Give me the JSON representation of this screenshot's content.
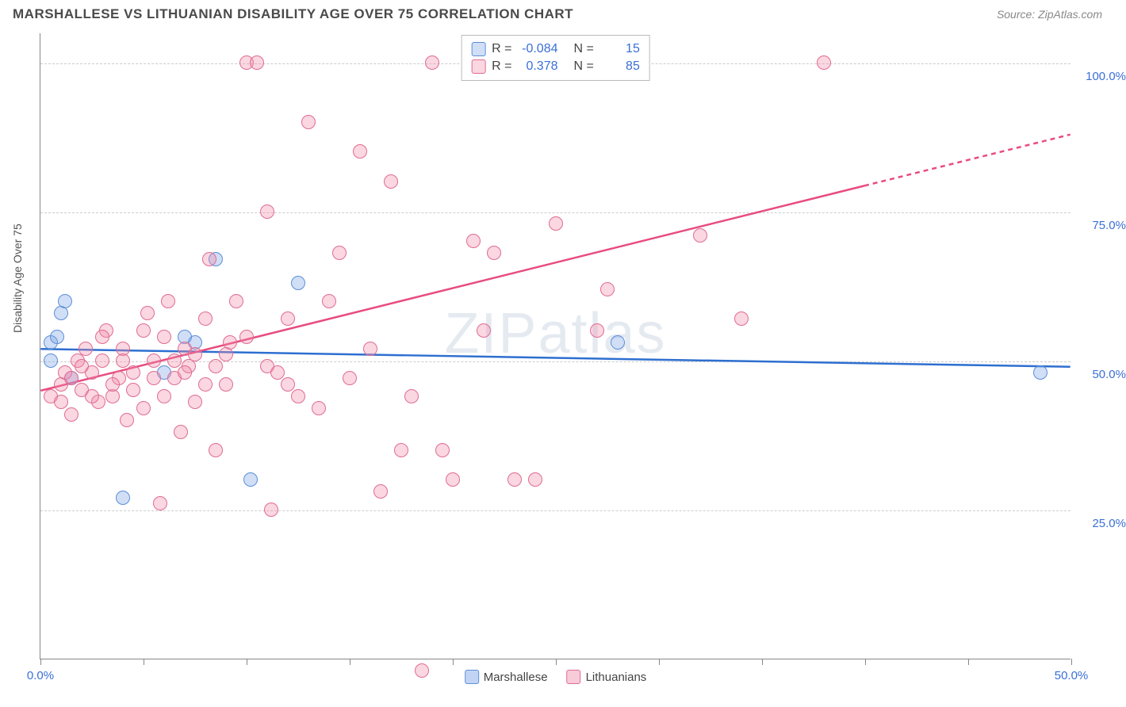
{
  "header": {
    "title": "MARSHALLESE VS LITHUANIAN DISABILITY AGE OVER 75 CORRELATION CHART",
    "source": "Source: ZipAtlas.com"
  },
  "ylabel": "Disability Age Over 75",
  "watermark_a": "ZIP",
  "watermark_b": "atlas",
  "chart": {
    "type": "scatter",
    "xlim": [
      0,
      50
    ],
    "ylim": [
      0,
      105
    ],
    "xtick_positions": [
      0,
      5,
      10,
      15,
      20,
      25,
      30,
      35,
      40,
      45,
      50
    ],
    "xtick_labels": {
      "0": "0.0%",
      "50": "50.0%"
    },
    "ytick_positions": [
      25,
      50,
      75,
      100
    ],
    "ytick_labels": {
      "25": "25.0%",
      "50": "50.0%",
      "75": "75.0%",
      "100": "100.0%"
    },
    "grid_color": "#cccccc",
    "background_color": "#ffffff",
    "axis_color": "#888888",
    "tick_label_color": "#3b6fd6",
    "marker_radius": 9,
    "series": [
      {
        "name": "Marshallese",
        "fill": "rgba(120,160,230,0.35)",
        "stroke": "#5b8fd8",
        "line_color": "#2e6fd0",
        "line_width": 2.5,
        "r_value": "-0.084",
        "n_value": "15",
        "trend": {
          "x1": 0,
          "y1": 52,
          "x2": 50,
          "y2": 49,
          "dash_from_x": null
        },
        "points": [
          [
            0.5,
            53
          ],
          [
            0.5,
            50
          ],
          [
            1.0,
            58
          ],
          [
            1.2,
            60
          ],
          [
            1.5,
            47
          ],
          [
            4.0,
            27
          ],
          [
            7.5,
            53
          ],
          [
            8.5,
            67
          ],
          [
            10.2,
            30
          ],
          [
            12.5,
            63
          ],
          [
            6.0,
            48
          ],
          [
            0.8,
            54
          ],
          [
            28.0,
            53
          ],
          [
            48.5,
            48
          ],
          [
            7.0,
            54
          ]
        ]
      },
      {
        "name": "Lithuanians",
        "fill": "rgba(240,140,170,0.35)",
        "stroke": "#e06b94",
        "line_color": "#e84c7f",
        "line_width": 2.5,
        "r_value": "0.378",
        "n_value": "85",
        "trend": {
          "x1": 0,
          "y1": 45,
          "x2": 50,
          "y2": 88,
          "dash_from_x": 40
        },
        "points": [
          [
            0.5,
            44
          ],
          [
            1.0,
            46
          ],
          [
            1.2,
            48
          ],
          [
            1.5,
            47
          ],
          [
            1.8,
            50
          ],
          [
            2.0,
            45
          ],
          [
            2.2,
            52
          ],
          [
            2.5,
            48
          ],
          [
            2.8,
            43
          ],
          [
            3.0,
            50
          ],
          [
            3.2,
            55
          ],
          [
            3.5,
            44
          ],
          [
            3.8,
            47
          ],
          [
            4.0,
            52
          ],
          [
            4.2,
            40
          ],
          [
            4.5,
            48
          ],
          [
            5.0,
            42
          ],
          [
            5.2,
            58
          ],
          [
            5.5,
            50
          ],
          [
            5.8,
            26
          ],
          [
            6.0,
            54
          ],
          [
            6.2,
            60
          ],
          [
            6.5,
            47
          ],
          [
            6.8,
            38
          ],
          [
            7.0,
            52
          ],
          [
            7.2,
            49
          ],
          [
            7.5,
            43
          ],
          [
            8.0,
            57
          ],
          [
            8.2,
            67
          ],
          [
            8.5,
            35
          ],
          [
            9.0,
            46
          ],
          [
            9.2,
            53
          ],
          [
            9.5,
            60
          ],
          [
            10.0,
            100
          ],
          [
            10.5,
            100
          ],
          [
            11.0,
            75
          ],
          [
            11.2,
            25
          ],
          [
            11.5,
            48
          ],
          [
            12.0,
            57
          ],
          [
            12.5,
            44
          ],
          [
            13.0,
            90
          ],
          [
            13.5,
            42
          ],
          [
            14.0,
            60
          ],
          [
            14.5,
            68
          ],
          [
            15.0,
            47
          ],
          [
            15.5,
            85
          ],
          [
            16.0,
            52
          ],
          [
            16.5,
            28
          ],
          [
            17.0,
            80
          ],
          [
            17.5,
            35
          ],
          [
            18.0,
            44
          ],
          [
            18.5,
            -2
          ],
          [
            19.0,
            100
          ],
          [
            19.5,
            35
          ],
          [
            20.0,
            30
          ],
          [
            21.0,
            70
          ],
          [
            21.5,
            55
          ],
          [
            22.0,
            68
          ],
          [
            23.0,
            30
          ],
          [
            24.0,
            30
          ],
          [
            25.0,
            73
          ],
          [
            27.0,
            55
          ],
          [
            27.5,
            62
          ],
          [
            32.0,
            71
          ],
          [
            34.0,
            57
          ],
          [
            38.0,
            100
          ],
          [
            1.0,
            43
          ],
          [
            1.5,
            41
          ],
          [
            2.0,
            49
          ],
          [
            3.0,
            54
          ],
          [
            4.0,
            50
          ],
          [
            5.0,
            55
          ],
          [
            6.0,
            44
          ],
          [
            7.0,
            48
          ],
          [
            8.0,
            46
          ],
          [
            9.0,
            51
          ],
          [
            10.0,
            54
          ],
          [
            11.0,
            49
          ],
          [
            12.0,
            46
          ],
          [
            2.5,
            44
          ],
          [
            3.5,
            46
          ],
          [
            4.5,
            45
          ],
          [
            5.5,
            47
          ],
          [
            6.5,
            50
          ],
          [
            7.5,
            51
          ],
          [
            8.5,
            49
          ]
        ]
      }
    ]
  },
  "legend_top_labels": {
    "r": "R =",
    "n": "N ="
  },
  "legend_bottom": [
    {
      "label": "Marshallese",
      "fill": "rgba(120,160,230,0.45)",
      "stroke": "#5b8fd8"
    },
    {
      "label": "Lithuanians",
      "fill": "rgba(240,140,170,0.45)",
      "stroke": "#e06b94"
    }
  ]
}
